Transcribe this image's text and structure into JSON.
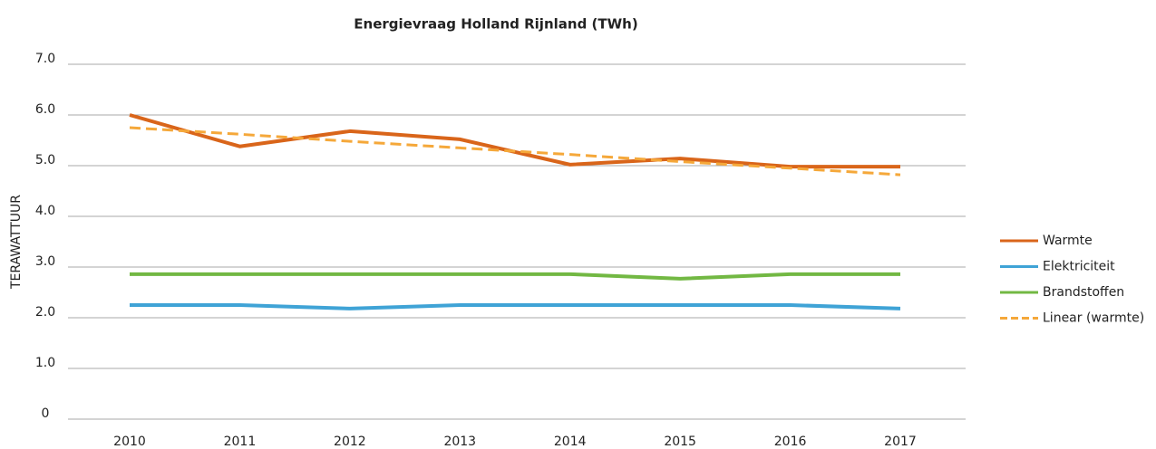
{
  "chart_data": {
    "type": "line",
    "title": "Energievraag Holland Rijnland (TWh)",
    "y_label": "TERAWATTUUR",
    "categories": [
      "2010",
      "2011",
      "2012",
      "2013",
      "2014",
      "2015",
      "2016",
      "2017"
    ],
    "series": [
      {
        "name": "Warmte",
        "color": "#d9651a",
        "values": [
          6.0,
          5.38,
          5.68,
          5.52,
          5.02,
          5.14,
          4.98,
          4.98
        ]
      },
      {
        "name": "Elektriciteit",
        "color": "#3fa3d6",
        "values": [
          2.25,
          2.25,
          2.18,
          2.25,
          2.25,
          2.25,
          2.25,
          2.18
        ]
      },
      {
        "name": "Brandstoffen",
        "color": "#72b843",
        "values": [
          2.86,
          2.86,
          2.86,
          2.86,
          2.86,
          2.77,
          2.86,
          2.86
        ]
      },
      {
        "name": "Linear (warmte)",
        "color": "#f5a83a",
        "dashed": true,
        "values": [
          5.75,
          5.62,
          5.48,
          5.35,
          5.22,
          5.08,
          4.95,
          4.82
        ]
      }
    ],
    "ylim": [
      0,
      7
    ],
    "yticks": [
      0,
      {
        "value": 1,
        "label": "1.0"
      },
      {
        "value": 2,
        "label": "2.0"
      },
      {
        "value": 3,
        "label": "3.0"
      },
      {
        "value": 4,
        "label": "4.0"
      },
      {
        "value": 5,
        "label": "5.0"
      },
      {
        "value": 6,
        "label": "6.0"
      },
      {
        "value": 7,
        "label": "7.0"
      }
    ],
    "grid": true,
    "legend": "right"
  }
}
